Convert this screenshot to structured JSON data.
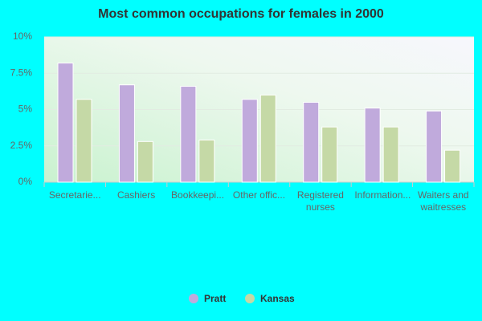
{
  "chart_data": {
    "type": "bar",
    "title": "Most common occupations for females in 2000",
    "categories": [
      "Secretarie...",
      "Cashiers",
      "Bookkeepi...",
      "Other offic...",
      "Registered nurses",
      "Information...",
      "Waiters and waitresses"
    ],
    "series": [
      {
        "name": "Pratt",
        "color": "#c0aadc",
        "values": [
          8.2,
          6.7,
          6.6,
          5.7,
          5.5,
          5.1,
          4.9
        ]
      },
      {
        "name": "Kansas",
        "color": "#c5d9a6",
        "values": [
          5.7,
          2.8,
          2.9,
          6.0,
          3.8,
          3.8,
          2.2
        ]
      }
    ],
    "ylim": [
      0,
      10
    ],
    "yticks": [
      {
        "value": 0,
        "label": "0%"
      },
      {
        "value": 2.5,
        "label": "2.5%"
      },
      {
        "value": 5,
        "label": "5%"
      },
      {
        "value": 7.5,
        "label": "7.5%"
      },
      {
        "value": 10,
        "label": "10%"
      }
    ],
    "grid": true,
    "legend": "bottom"
  }
}
